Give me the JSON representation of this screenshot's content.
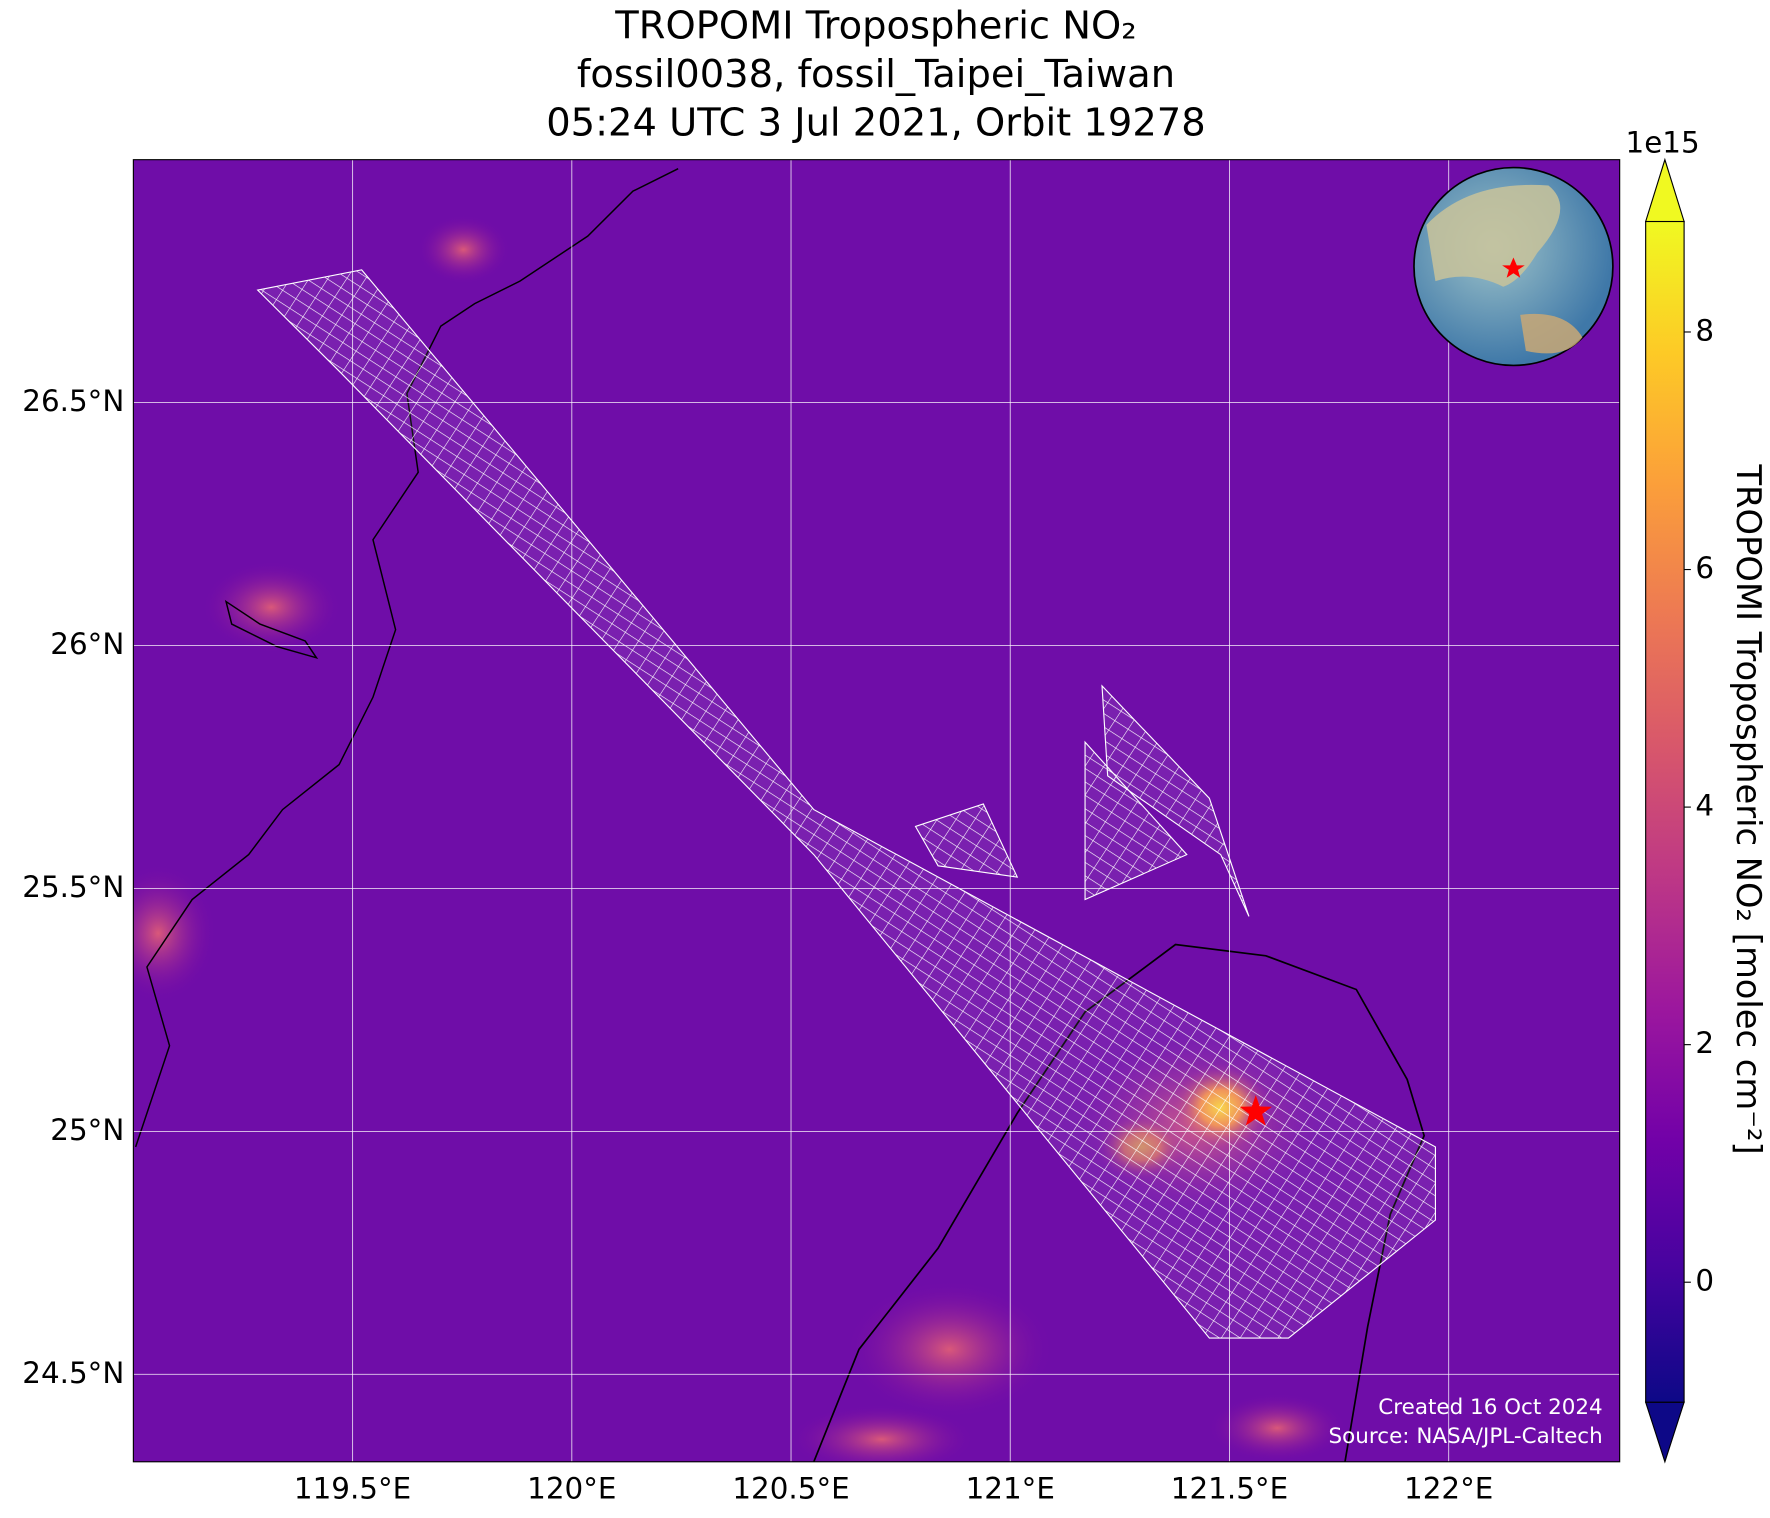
{
  "chart_data": {
    "type": "map",
    "title": [
      "TROPOMI Tropospheric NO₂",
      "fossil0038, fossil_Taipei_Taiwan",
      "05:24 UTC 3 Jul 2021, Orbit 19278"
    ],
    "xlim": [
      119.0,
      122.39
    ],
    "ylim": [
      24.32,
      27.0
    ],
    "xticks": [
      {
        "value": 119.5,
        "label": "119.5°E"
      },
      {
        "value": 120,
        "label": "120°E"
      },
      {
        "value": 120.5,
        "label": "120.5°E"
      },
      {
        "value": 121,
        "label": "121°E"
      },
      {
        "value": 121.5,
        "label": "121.5°E"
      },
      {
        "value": 122,
        "label": "122°E"
      }
    ],
    "yticks": [
      {
        "value": 24.5,
        "label": "24.5°N"
      },
      {
        "value": 25,
        "label": "25°N"
      },
      {
        "value": 25.5,
        "label": "25.5°N"
      },
      {
        "value": 26,
        "label": "26°N"
      },
      {
        "value": 26.5,
        "label": "26.5°N"
      }
    ],
    "grid": true,
    "site": {
      "lon": 121.56,
      "lat": 25.04,
      "color": "#ff0000"
    },
    "colorbar": {
      "label": "TROPOMI Tropospheric NO₂ [molec cm⁻²]",
      "offset": "1e15",
      "colormap": "plasma",
      "lim": [
        -1.01,
        8.93
      ],
      "ticks": [
        0,
        2,
        4,
        6,
        8
      ]
    },
    "credits": [
      "Created 16 Oct 2024",
      "Source: NASA/JPL-Caltech"
    ]
  }
}
